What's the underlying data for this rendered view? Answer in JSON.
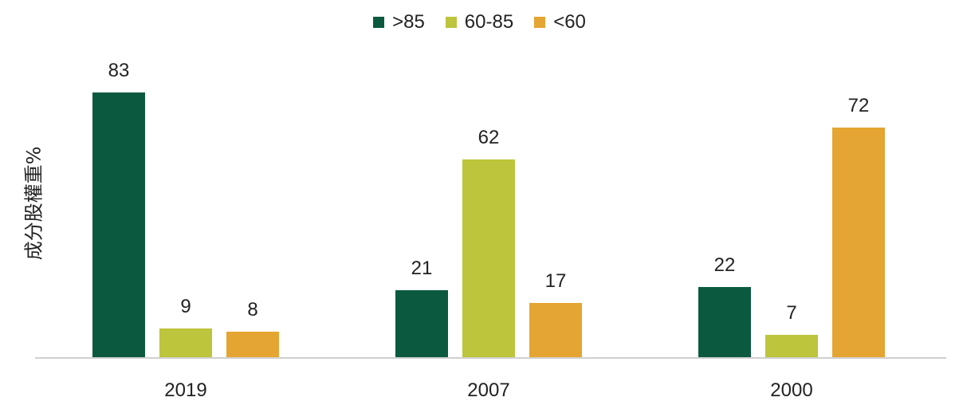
{
  "chart_data": {
    "type": "bar",
    "categories": [
      "2019",
      "2007",
      "2000"
    ],
    "series": [
      {
        "name": ">85",
        "color": "#0b5a40",
        "values": [
          83,
          21,
          22
        ]
      },
      {
        "name": "60-85",
        "color": "#bcc53c",
        "values": [
          9,
          62,
          7
        ]
      },
      {
        "name": "<60",
        "color": "#e5a532",
        "values": [
          8,
          17,
          72
        ]
      }
    ],
    "title": "",
    "xlabel": "",
    "ylabel": "成分股權重%",
    "ylim": [
      0,
      90
    ],
    "grid": false,
    "legend_position": "top-center"
  }
}
